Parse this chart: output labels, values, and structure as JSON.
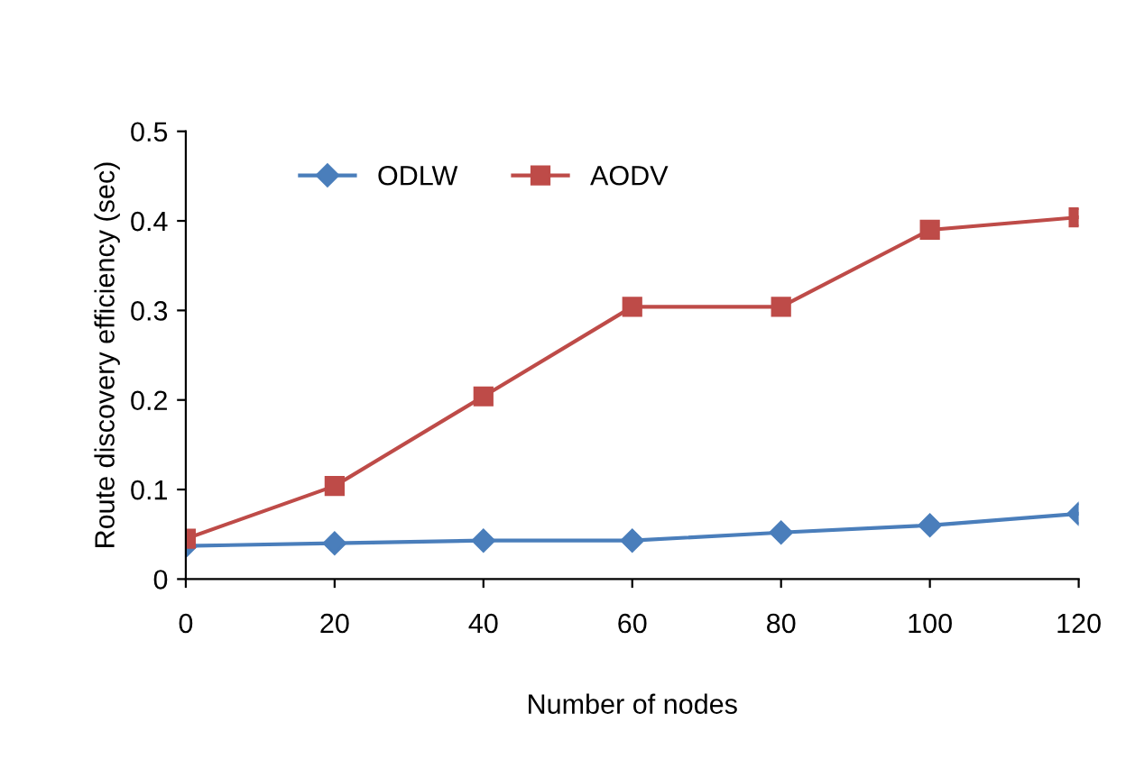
{
  "chart_data": {
    "type": "line",
    "xlabel": "Number of nodes",
    "ylabel": "Route discovery efficiency (sec)",
    "x": [
      0,
      20,
      40,
      60,
      80,
      100,
      120
    ],
    "series": [
      {
        "name": "ODLW",
        "color": "#4a7ebb",
        "marker": "diamond",
        "values": [
          0.037,
          0.04,
          0.043,
          0.043,
          0.052,
          0.06,
          0.073
        ]
      },
      {
        "name": "AODV",
        "color": "#be4b48",
        "marker": "square",
        "values": [
          0.045,
          0.104,
          0.204,
          0.304,
          0.304,
          0.39,
          0.404
        ]
      }
    ],
    "xlim": [
      0,
      120
    ],
    "xticks": [
      0,
      20,
      40,
      60,
      80,
      100,
      120
    ],
    "ylim": [
      0,
      0.5
    ],
    "yticks": [
      0,
      0.1,
      0.2,
      0.3,
      0.4,
      0.5
    ],
    "grid": false,
    "legend": "top left",
    "line_style": "solid"
  }
}
